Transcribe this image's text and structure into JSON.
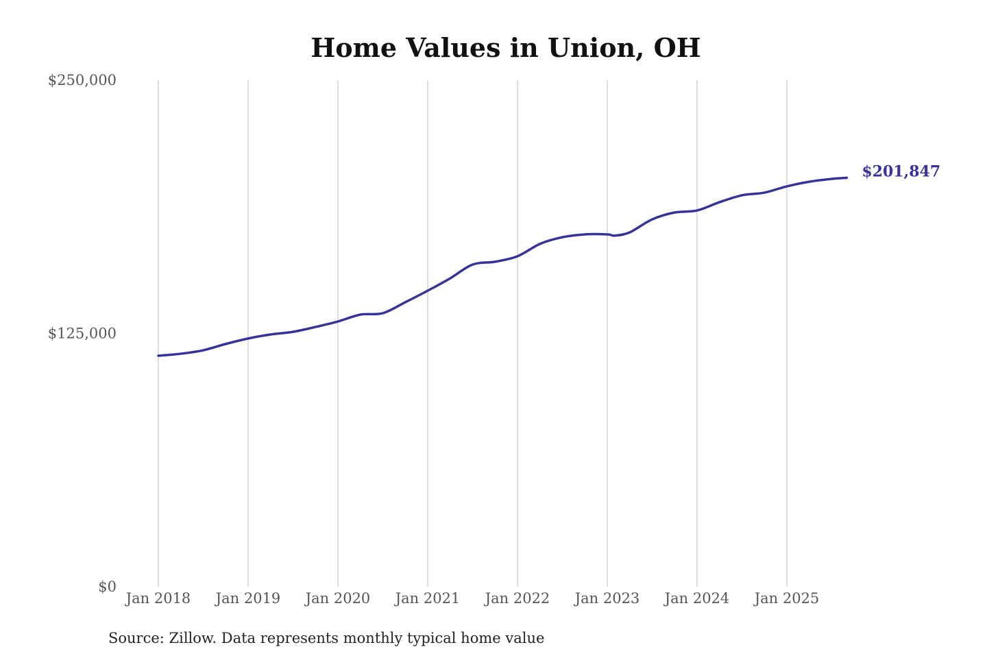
{
  "chart_data": {
    "type": "line",
    "title": "Home Values in Union, OH",
    "source": "Source: Zillow. Data represents monthly typical home value",
    "xlabel": "",
    "ylabel": "",
    "ylim": [
      0,
      250000
    ],
    "y_ticks": [
      "$0",
      "$125,000",
      "$250,000"
    ],
    "y_tick_values": [
      0,
      125000,
      250000
    ],
    "x_ticks": [
      "Jan 2018",
      "Jan 2019",
      "Jan 2020",
      "Jan 2021",
      "Jan 2022",
      "Jan 2023",
      "Jan 2024",
      "Jan 2025"
    ],
    "x_tick_values": [
      "2018-01",
      "2019-01",
      "2020-01",
      "2021-01",
      "2022-01",
      "2023-01",
      "2024-01",
      "2025-01"
    ],
    "grid": "vertical",
    "line_color": "#35339a",
    "end_label": "$201,847",
    "x": [
      "2018-01",
      "2018-04",
      "2018-07",
      "2018-10",
      "2019-01",
      "2019-04",
      "2019-07",
      "2019-10",
      "2020-01",
      "2020-04",
      "2020-07",
      "2020-10",
      "2021-01",
      "2021-04",
      "2021-07",
      "2021-10",
      "2022-01",
      "2022-04",
      "2022-07",
      "2022-10",
      "2023-01",
      "2023-02",
      "2023-04",
      "2023-07",
      "2023-10",
      "2024-01",
      "2024-04",
      "2024-07",
      "2024-10",
      "2025-01",
      "2025-04",
      "2025-07",
      "2025-09"
    ],
    "values": [
      114000,
      115000,
      116700,
      119800,
      122500,
      124500,
      125800,
      128200,
      130900,
      134300,
      135000,
      140400,
      146100,
      152200,
      159000,
      160400,
      163100,
      169200,
      172500,
      173900,
      173900,
      173300,
      174900,
      181300,
      184700,
      185700,
      189800,
      193200,
      194500,
      197600,
      199900,
      201300,
      201847
    ]
  }
}
